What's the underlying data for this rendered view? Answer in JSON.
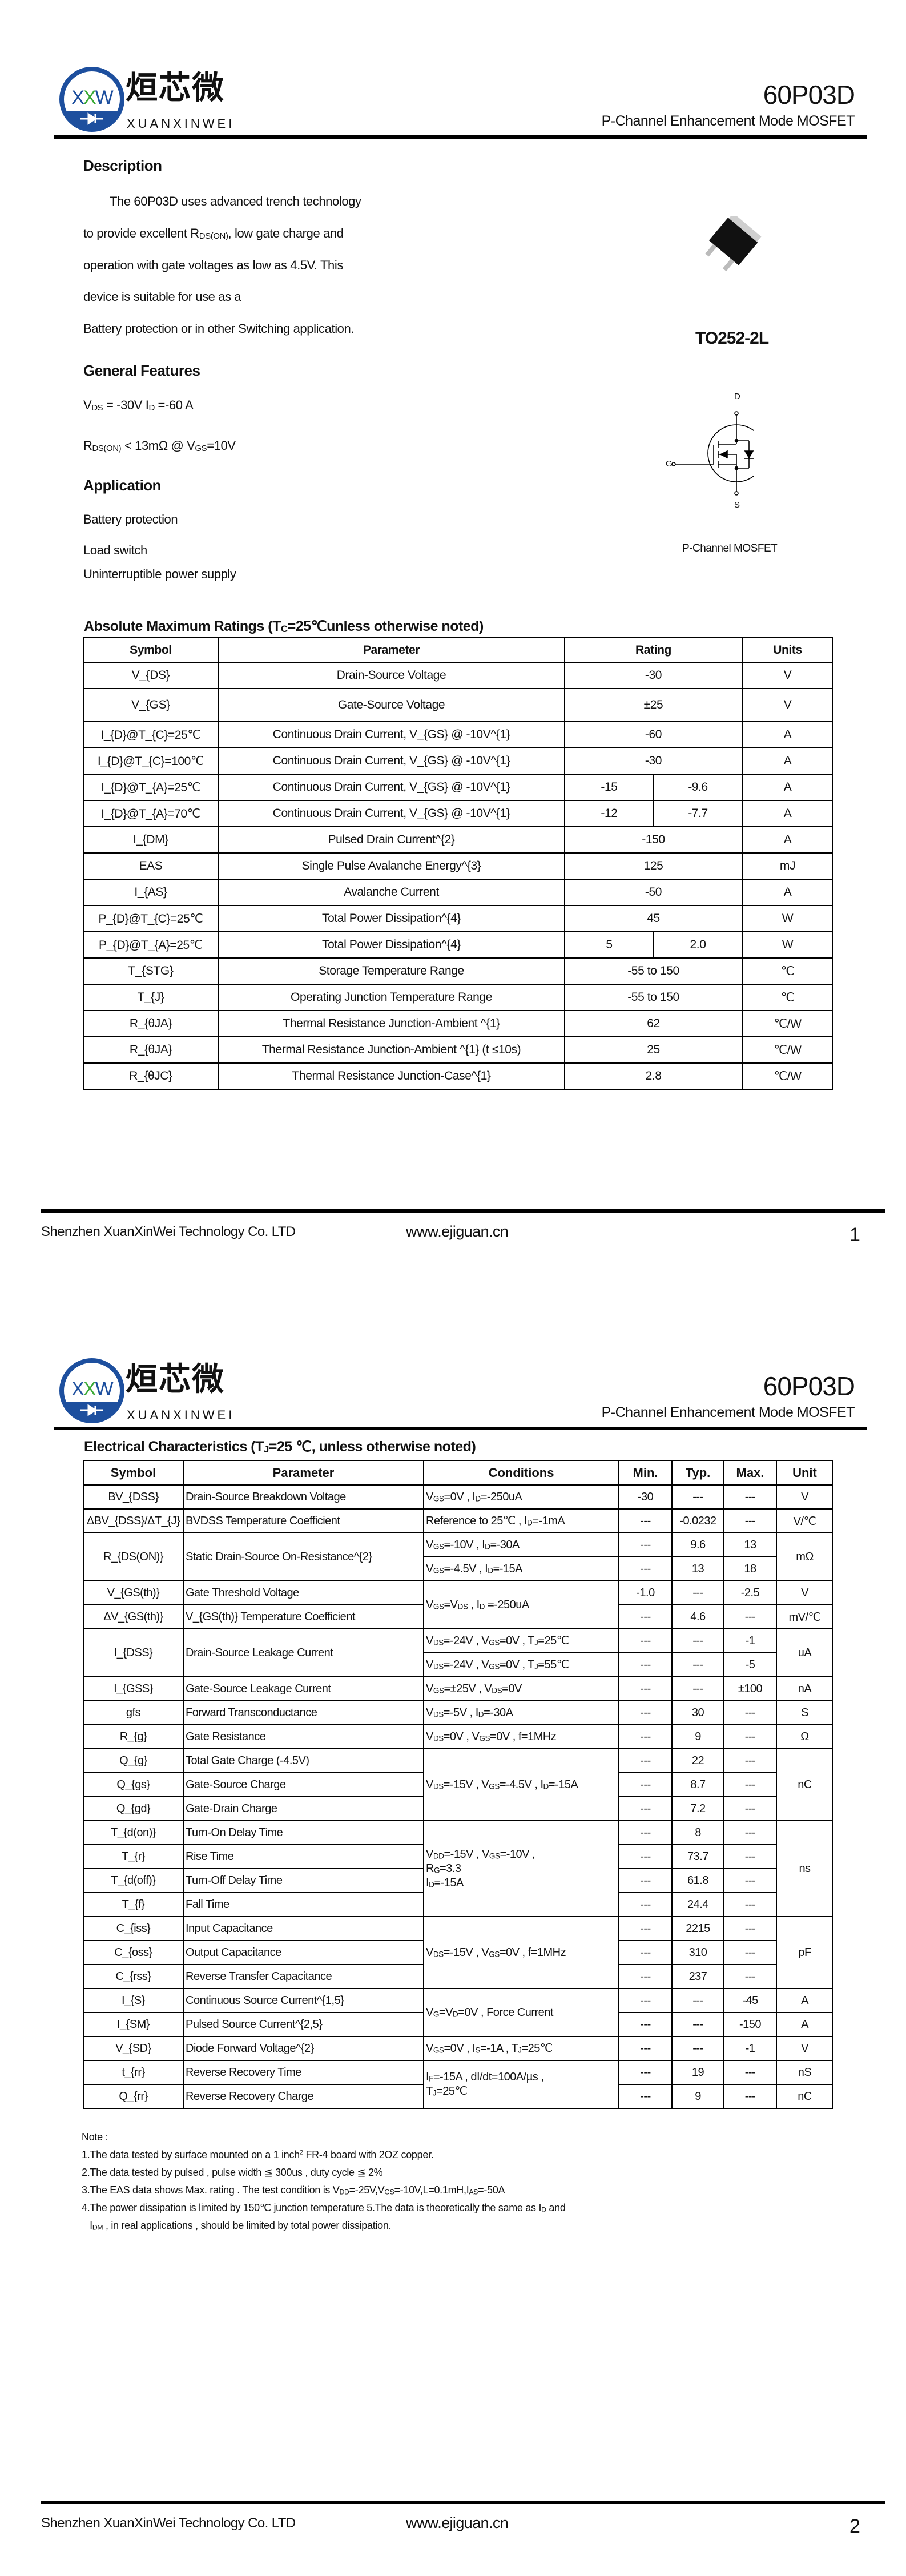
{
  "header": {
    "logo_mark": "XW",
    "logo_cn": "烜芯微",
    "logo_en": "XUANXINWEI",
    "part_number": "60P03D",
    "subtitle": "P-Channel Enhancement Mode MOSFET",
    "brand_blue": "#1d4f9e",
    "brand_green": "#3aa935"
  },
  "page1": {
    "description": {
      "title": "Description",
      "lines": [
        "The 60P03D uses advanced trench technology",
        "to provide excellent R_{DS(ON)}, low gate charge and",
        "operation with gate voltages as low as 4.5V. This",
        "device is suitable for use as a",
        "Battery protection or in other Switching application."
      ]
    },
    "package_label": "TO252-2L",
    "features": {
      "title": "General Features",
      "items": [
        "V_{DS} = -30V  I_{D} =-60 A",
        "R_{DS(ON)} < 13mΩ @ V_{GS}=10V"
      ]
    },
    "application": {
      "title": "Application",
      "items": [
        "Battery protection",
        "Load switch",
        "Uninterruptible power supply"
      ]
    },
    "schematic": {
      "drain": "D",
      "gate": "G",
      "source": "S",
      "caption": "P-Channel MOSFET"
    }
  },
  "abs_max": {
    "title": "Absolute Maximum Ratings (T_{C}=25℃unless otherwise noted)",
    "headers": [
      "Symbol",
      "Parameter",
      "Rating",
      "Units"
    ],
    "rows": [
      {
        "symbol": "V_{DS}",
        "parameter": "Drain-Source Voltage",
        "rating": "-30",
        "unit": "V"
      },
      {
        "symbol": "V_{GS}",
        "parameter": "Gate-Source Voltage",
        "rating": "±25",
        "unit": "V"
      },
      {
        "symbol": "I_{D}@T_{C}=25℃",
        "parameter": "Continuous Drain Current, V_{GS} @ -10V^{1}",
        "rating": "-60",
        "unit": "A"
      },
      {
        "symbol": "I_{D}@T_{C}=100℃",
        "parameter": "Continuous Drain Current, V_{GS} @ -10V^{1}",
        "rating": "-30",
        "unit": "A"
      },
      {
        "symbol": "I_{D}@T_{A}=25℃",
        "parameter": "Continuous Drain Current, V_{GS} @ -10V^{1}",
        "rating": [
          "-15",
          "-9.6"
        ],
        "unit": "A"
      },
      {
        "symbol": "I_{D}@T_{A}=70℃",
        "parameter": "Continuous Drain Current, V_{GS} @ -10V^{1}",
        "rating": [
          "-12",
          "-7.7"
        ],
        "unit": "A"
      },
      {
        "symbol": "I_{DM}",
        "parameter": "Pulsed Drain Current^{2}",
        "rating": "-150",
        "unit": "A"
      },
      {
        "symbol": "EAS",
        "parameter": "Single Pulse Avalanche Energy^{3}",
        "rating": "125",
        "unit": "mJ"
      },
      {
        "symbol": "I_{AS}",
        "parameter": "Avalanche Current",
        "rating": "-50",
        "unit": "A"
      },
      {
        "symbol": "P_{D}@T_{C}=25℃",
        "parameter": "Total Power Dissipation^{4}",
        "rating": "45",
        "unit": "W"
      },
      {
        "symbol": "P_{D}@T_{A}=25℃",
        "parameter": "Total Power Dissipation^{4}",
        "rating": [
          "5",
          "2.0"
        ],
        "unit": "W"
      },
      {
        "symbol": "T_{STG}",
        "parameter": "Storage Temperature Range",
        "rating": "-55 to 150",
        "unit": "℃"
      },
      {
        "symbol": "T_{J}",
        "parameter": "Operating Junction Temperature Range",
        "rating": "-55 to 150",
        "unit": "℃"
      },
      {
        "symbol": "R_{θJA}",
        "parameter": "Thermal Resistance Junction-Ambient ^{1}",
        "rating": "62",
        "unit": "℃/W"
      },
      {
        "symbol": "R_{θJA}",
        "parameter": "Thermal Resistance Junction-Ambient ^{1} (t ≤10s)",
        "rating": "25",
        "unit": "℃/W"
      },
      {
        "symbol": "R_{θJC}",
        "parameter": "Thermal Resistance Junction-Case^{1}",
        "rating": "2.8",
        "unit": "℃/W"
      }
    ]
  },
  "electrical": {
    "title": "Electrical Characteristics (T_{J}=25 ℃, unless otherwise noted)",
    "headers": [
      "Symbol",
      "Parameter",
      "Conditions",
      "Min.",
      "Typ.",
      "Max.",
      "Unit"
    ],
    "rows": [
      [
        "BV_{DSS}",
        "Drain-Source Breakdown Voltage",
        "V_{GS}=0V , I_{D}=-250uA",
        "-30",
        "---",
        "---",
        "V"
      ],
      [
        "ΔBV_{DSS}/ΔT_{J}",
        "BVDSS Temperature Coefficient",
        "Reference to 25℃ , I_{D}=-1mA",
        "---",
        "-0.0232",
        "---",
        "V/℃"
      ],
      [
        {
          "t": "R_{DS(ON)}",
          "rs": 2
        },
        {
          "t": "Static Drain-Source On-Resistance^{2}",
          "rs": 2
        },
        "V_{GS}=-10V , I_{D}=-30A",
        "---",
        "9.6",
        "13",
        {
          "t": "mΩ",
          "rs": 2
        }
      ],
      [
        "V_{GS}=-4.5V , I_{D}=-15A",
        "---",
        "13",
        "18"
      ],
      [
        "V_{GS(th)}",
        "Gate Threshold Voltage",
        {
          "t": "V_{GS}=V_{DS} , I_{D} =-250uA",
          "rs": 2
        },
        "-1.0",
        "---",
        "-2.5",
        "V"
      ],
      [
        "ΔV_{GS(th)}",
        "V_{GS(th)} Temperature Coefficient",
        "---",
        "4.6",
        "---",
        "mV/℃"
      ],
      [
        {
          "t": "I_{DSS}",
          "rs": 2
        },
        {
          "t": "Drain-Source Leakage Current",
          "rs": 2
        },
        "V_{DS}=-24V , V_{GS}=0V , T_{J}=25℃",
        "---",
        "---",
        "-1",
        {
          "t": "uA",
          "rs": 2
        }
      ],
      [
        "V_{DS}=-24V , V_{GS}=0V , T_{J}=55℃",
        "---",
        "---",
        "-5"
      ],
      [
        "I_{GSS}",
        "Gate-Source Leakage Current",
        "V_{GS}=±25V , V_{DS}=0V",
        "---",
        "---",
        "±100",
        "nA"
      ],
      [
        "gfs",
        "Forward Transconductance",
        "V_{DS}=-5V , I_{D}=-30A",
        "---",
        "30",
        "---",
        "S"
      ],
      [
        "R_{g}",
        "Gate Resistance",
        "V_{DS}=0V , V_{GS}=0V , f=1MHz",
        "---",
        "9",
        "---",
        "Ω"
      ],
      [
        "Q_{g}",
        "Total Gate Charge (-4.5V)",
        {
          "t": "V_{DS}=-15V , V_{GS}=-4.5V , I_{D}=-15A",
          "rs": 3
        },
        "---",
        "22",
        "---",
        {
          "t": "nC",
          "rs": 3
        }
      ],
      [
        "Q_{gs}",
        "Gate-Source Charge",
        "---",
        "8.7",
        "---"
      ],
      [
        "Q_{gd}",
        "Gate-Drain Charge",
        "---",
        "7.2",
        "---"
      ],
      [
        "T_{d(on)}",
        "Turn-On Delay Time",
        {
          "t": "V_{DD}=-15V  ,  V_{GS}=-10V ,\nR_{G}=3.3\nI_{D}=-15A",
          "rs": 4
        },
        "---",
        "8",
        "---",
        {
          "t": "ns",
          "rs": 4
        }
      ],
      [
        "T_{r}",
        "Rise Time",
        "---",
        "73.7",
        "---"
      ],
      [
        "T_{d(off)}",
        "Turn-Off Delay Time",
        "---",
        "61.8",
        "---"
      ],
      [
        "T_{f}",
        "Fall Time",
        "---",
        "24.4",
        "---"
      ],
      [
        "C_{iss}",
        "Input Capacitance",
        {
          "t": "V_{DS}=-15V , V_{GS}=0V , f=1MHz",
          "rs": 3
        },
        "---",
        "2215",
        "---",
        {
          "t": "pF",
          "rs": 3
        }
      ],
      [
        "C_{oss}",
        "Output Capacitance",
        "---",
        "310",
        "---"
      ],
      [
        "C_{rss}",
        "Reverse Transfer Capacitance",
        "---",
        "237",
        "---"
      ],
      [
        "I_{S}",
        "Continuous Source Current^{1,5}",
        {
          "t": "V_{G}=V_{D}=0V , Force Current",
          "rs": 2
        },
        "---",
        "---",
        "-45",
        "A"
      ],
      [
        "I_{SM}",
        "Pulsed Source Current^{2,5}",
        "---",
        "---",
        "-150",
        "A"
      ],
      [
        "V_{SD}",
        "Diode Forward Voltage^{2}",
        "V_{GS}=0V , I_{S}=-1A , T_{J}=25℃",
        "---",
        "---",
        "-1",
        "V"
      ],
      [
        "t_{rr}",
        "Reverse Recovery Time",
        {
          "t": "I_{F}=-15A , dI/dt=100A/µs ,\nT_{J}=25℃",
          "rs": 2
        },
        "---",
        "19",
        "---",
        "nS"
      ],
      [
        "Q_{rr}",
        "Reverse Recovery Charge",
        "---",
        "9",
        "---",
        "nC"
      ]
    ]
  },
  "notes": {
    "title": "Note :",
    "items": [
      "1.The data tested by surface mounted on a 1 inch^{2} FR-4 board with 2OZ copper.",
      "2.The data tested by pulsed , pulse width ≦ 300us , duty cycle ≦ 2%",
      "3.The EAS data shows Max. rating . The test condition is V_{DD}=-25V,V_{GS}=-10V,L=0.1mH,I_{AS}=-50A",
      "4.The power dissipation is limited by 150℃ junction temperature 5.The data is theoretically the same as I_{D} and",
      "   I_{DM} , in real applications , should be limited by total power dissipation."
    ]
  },
  "footer": {
    "company": "Shenzhen XuanXinWei Technology Co. LTD",
    "website": "www.ejiguan.cn",
    "page_numbers": [
      "1",
      "2"
    ]
  }
}
